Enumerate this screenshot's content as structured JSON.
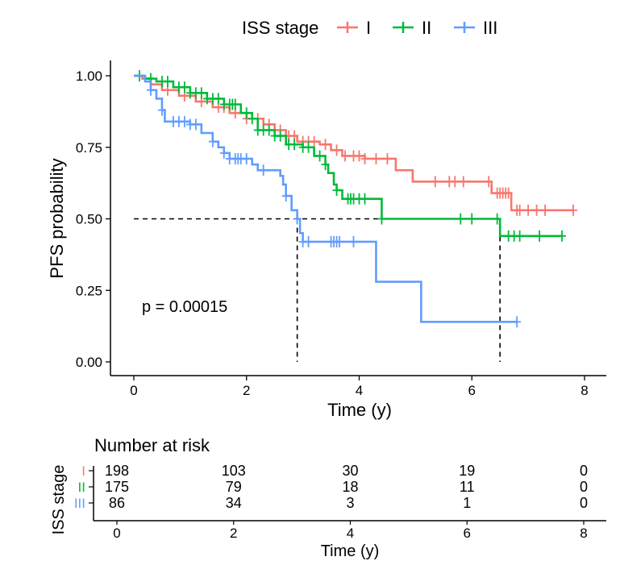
{
  "chart_data": {
    "type": "line",
    "subtype": "kaplan-meier step",
    "legend": {
      "title": "ISS stage",
      "placement": "top",
      "entries": [
        {
          "label": "I",
          "color": "#F8766D"
        },
        {
          "label": "II",
          "color": "#00BA38"
        },
        {
          "label": "III",
          "color": "#619CFF"
        }
      ]
    },
    "xlabel": "Time (y)",
    "ylabel": "PFS probability",
    "xlim": [
      0,
      8
    ],
    "ylim": [
      0,
      1
    ],
    "xticks": [
      "0",
      "2",
      "4",
      "6",
      "8"
    ],
    "yticks": [
      "0.00",
      "0.25",
      "0.50",
      "0.75",
      "1.00"
    ],
    "annotation": "p = 0.00015",
    "median_line": {
      "y": 0.5,
      "x_ends": [
        2.9,
        6.5
      ]
    },
    "series": [
      {
        "name": "I",
        "color": "#F8766D",
        "steps": [
          [
            0,
            1.0
          ],
          [
            0.15,
            0.99
          ],
          [
            0.3,
            0.97
          ],
          [
            0.5,
            0.95
          ],
          [
            0.8,
            0.93
          ],
          [
            1.1,
            0.91
          ],
          [
            1.4,
            0.89
          ],
          [
            1.7,
            0.87
          ],
          [
            2.0,
            0.85
          ],
          [
            2.3,
            0.83
          ],
          [
            2.5,
            0.81
          ],
          [
            2.7,
            0.79
          ],
          [
            2.9,
            0.77
          ],
          [
            3.3,
            0.76
          ],
          [
            3.5,
            0.74
          ],
          [
            3.7,
            0.72
          ],
          [
            4.1,
            0.71
          ],
          [
            4.65,
            0.67
          ],
          [
            4.95,
            0.63
          ],
          [
            6.35,
            0.59
          ],
          [
            6.7,
            0.53
          ],
          [
            7.8,
            0.53
          ]
        ],
        "censors": [
          0.6,
          0.9,
          1.2,
          1.5,
          1.6,
          1.8,
          2.0,
          2.2,
          2.4,
          2.6,
          2.75,
          2.85,
          3.0,
          3.1,
          3.2,
          3.4,
          3.6,
          3.75,
          3.9,
          4.0,
          4.1,
          4.3,
          4.5,
          5.35,
          5.6,
          5.7,
          5.85,
          6.3,
          6.45,
          6.5,
          6.55,
          6.6,
          6.65,
          6.8,
          6.85,
          7.0,
          7.15,
          7.3,
          7.8
        ]
      },
      {
        "name": "II",
        "color": "#00BA38",
        "steps": [
          [
            0,
            1.0
          ],
          [
            0.2,
            0.99
          ],
          [
            0.4,
            0.98
          ],
          [
            0.7,
            0.96
          ],
          [
            1.0,
            0.94
          ],
          [
            1.3,
            0.92
          ],
          [
            1.6,
            0.9
          ],
          [
            1.9,
            0.87
          ],
          [
            2.1,
            0.85
          ],
          [
            2.2,
            0.81
          ],
          [
            2.5,
            0.79
          ],
          [
            2.7,
            0.76
          ],
          [
            3.0,
            0.75
          ],
          [
            3.2,
            0.72
          ],
          [
            3.4,
            0.69
          ],
          [
            3.45,
            0.66
          ],
          [
            3.55,
            0.62
          ],
          [
            3.6,
            0.6
          ],
          [
            3.7,
            0.57
          ],
          [
            4.2,
            0.57
          ],
          [
            4.4,
            0.5
          ],
          [
            6.5,
            0.44
          ],
          [
            7.6,
            0.44
          ]
        ],
        "censors": [
          0.1,
          0.3,
          0.5,
          0.6,
          0.8,
          0.9,
          1.0,
          1.1,
          1.2,
          1.3,
          1.4,
          1.5,
          1.6,
          1.7,
          1.75,
          1.8,
          2.0,
          2.1,
          2.2,
          2.3,
          2.4,
          2.5,
          2.6,
          2.75,
          2.85,
          3.0,
          3.1,
          3.3,
          3.4,
          3.6,
          3.8,
          3.85,
          3.9,
          4.0,
          4.1,
          4.4,
          5.8,
          6.0,
          6.45,
          6.65,
          6.75,
          6.85,
          7.2,
          7.6
        ]
      },
      {
        "name": "III",
        "color": "#619CFF",
        "steps": [
          [
            0,
            1.0
          ],
          [
            0.2,
            0.98
          ],
          [
            0.3,
            0.95
          ],
          [
            0.4,
            0.92
          ],
          [
            0.5,
            0.88
          ],
          [
            0.55,
            0.84
          ],
          [
            1.0,
            0.83
          ],
          [
            1.2,
            0.8
          ],
          [
            1.4,
            0.77
          ],
          [
            1.5,
            0.75
          ],
          [
            1.6,
            0.73
          ],
          [
            1.7,
            0.71
          ],
          [
            2.1,
            0.69
          ],
          [
            2.2,
            0.67
          ],
          [
            2.6,
            0.65
          ],
          [
            2.65,
            0.62
          ],
          [
            2.7,
            0.58
          ],
          [
            2.8,
            0.53
          ],
          [
            2.9,
            0.5
          ],
          [
            2.95,
            0.45
          ],
          [
            3.0,
            0.42
          ],
          [
            4.3,
            0.28
          ],
          [
            5.1,
            0.14
          ],
          [
            6.8,
            0.14
          ]
        ],
        "censors": [
          0.3,
          0.5,
          0.7,
          0.8,
          0.9,
          1.0,
          1.1,
          1.4,
          1.6,
          1.7,
          1.8,
          1.85,
          1.9,
          2.0,
          2.3,
          2.7,
          2.9,
          3.0,
          3.1,
          3.5,
          3.55,
          3.6,
          3.65,
          3.9,
          6.8
        ]
      }
    ]
  },
  "risk_table": {
    "title": "Number at risk",
    "ylabel": "ISS stage",
    "xlabel": "Time (y)",
    "times": [
      "0",
      "2",
      "4",
      "6",
      "8"
    ],
    "rows": [
      {
        "label": "I",
        "color": "#F8766D",
        "values": [
          "198",
          "103",
          "30",
          "19",
          "0"
        ]
      },
      {
        "label": "II",
        "color": "#00BA38",
        "values": [
          "175",
          "79",
          "18",
          "11",
          "0"
        ]
      },
      {
        "label": "III",
        "color": "#619CFF",
        "values": [
          "86",
          "34",
          "3",
          "1",
          "0"
        ]
      }
    ]
  }
}
